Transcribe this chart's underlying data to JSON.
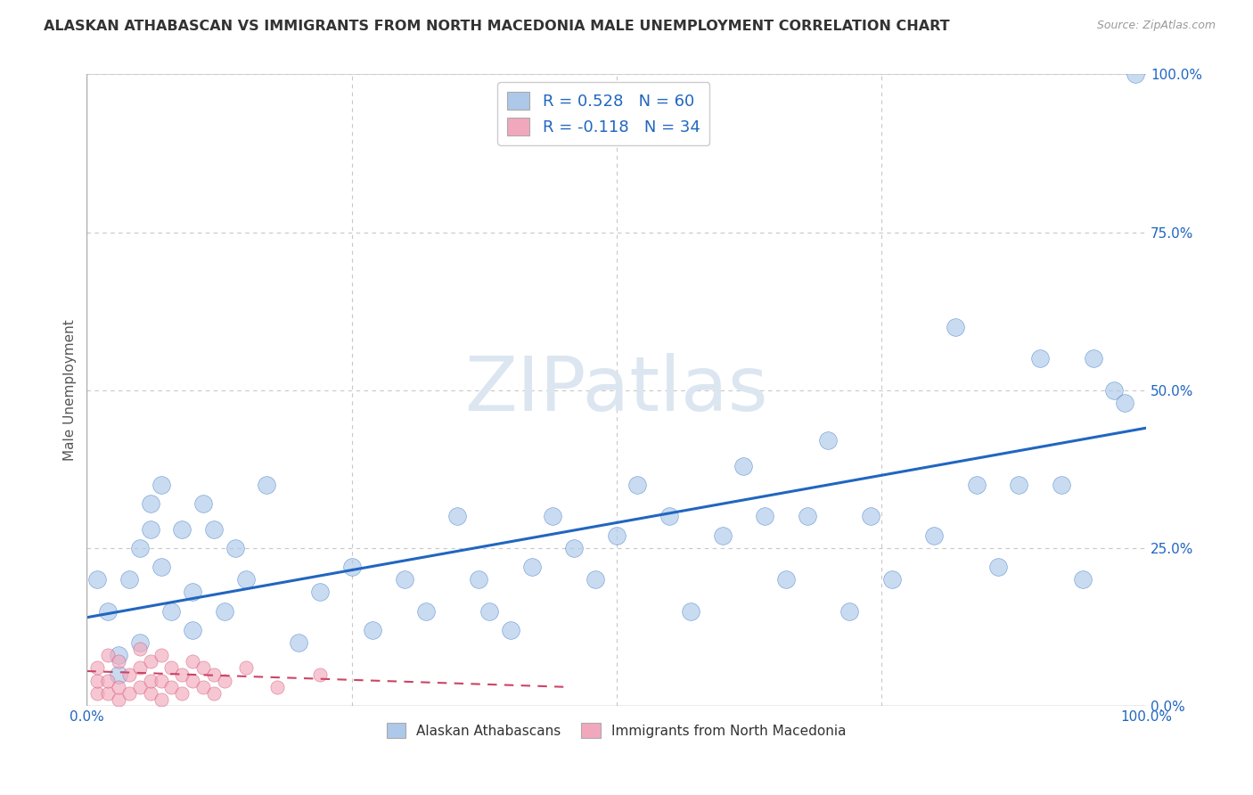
{
  "title": "ALASKAN ATHABASCAN VS IMMIGRANTS FROM NORTH MACEDONIA MALE UNEMPLOYMENT CORRELATION CHART",
  "source_text": "Source: ZipAtlas.com",
  "ylabel": "Male Unemployment",
  "blue_R": 0.528,
  "blue_N": 60,
  "pink_R": -0.118,
  "pink_N": 34,
  "blue_color": "#adc8e8",
  "pink_color": "#f2a8bc",
  "blue_line_color": "#2166c0",
  "pink_line_color": "#cc4466",
  "watermark": "ZIPatlas",
  "legend_labels": [
    "Alaskan Athabascans",
    "Immigrants from North Macedonia"
  ],
  "blue_scatter_x": [
    1,
    2,
    3,
    3,
    4,
    5,
    5,
    6,
    6,
    7,
    7,
    8,
    9,
    10,
    10,
    11,
    12,
    13,
    14,
    15,
    17,
    20,
    22,
    25,
    27,
    30,
    32,
    35,
    37,
    38,
    40,
    42,
    44,
    46,
    48,
    50,
    52,
    55,
    57,
    60,
    62,
    64,
    66,
    68,
    70,
    72,
    74,
    76,
    80,
    82,
    84,
    86,
    88,
    90,
    92,
    94,
    95,
    97,
    98,
    99
  ],
  "blue_scatter_y": [
    20,
    15,
    8,
    5,
    20,
    25,
    10,
    32,
    28,
    35,
    22,
    15,
    28,
    12,
    18,
    32,
    28,
    15,
    25,
    20,
    35,
    10,
    18,
    22,
    12,
    20,
    15,
    30,
    20,
    15,
    12,
    22,
    30,
    25,
    20,
    27,
    35,
    30,
    15,
    27,
    38,
    30,
    20,
    30,
    42,
    15,
    30,
    20,
    27,
    60,
    35,
    22,
    35,
    55,
    35,
    20,
    55,
    50,
    48,
    100
  ],
  "pink_scatter_x": [
    1,
    1,
    1,
    2,
    2,
    2,
    3,
    3,
    3,
    4,
    4,
    5,
    5,
    5,
    6,
    6,
    6,
    7,
    7,
    7,
    8,
    8,
    9,
    9,
    10,
    10,
    11,
    11,
    12,
    12,
    13,
    15,
    18,
    22
  ],
  "pink_scatter_y": [
    2,
    4,
    6,
    2,
    4,
    8,
    1,
    3,
    7,
    2,
    5,
    3,
    6,
    9,
    2,
    4,
    7,
    1,
    4,
    8,
    3,
    6,
    2,
    5,
    4,
    7,
    3,
    6,
    2,
    5,
    4,
    6,
    3,
    5
  ],
  "blue_trendline_x0": 0,
  "blue_trendline_y0": 14.0,
  "blue_trendline_x1": 100,
  "blue_trendline_y1": 44.0,
  "pink_trendline_x0": 0,
  "pink_trendline_y0": 5.5,
  "pink_trendline_x1": 45,
  "pink_trendline_y1": 3.0,
  "xlim": [
    0,
    100
  ],
  "ylim": [
    0,
    100
  ],
  "yticks": [
    0,
    25,
    50,
    75,
    100
  ],
  "ytick_labels": [
    "0.0%",
    "25.0%",
    "50.0%",
    "75.0%",
    "100.0%"
  ],
  "xtick_labels": [
    "0.0%",
    "100.0%"
  ],
  "background_color": "#ffffff",
  "grid_color": "#c8c8c8"
}
